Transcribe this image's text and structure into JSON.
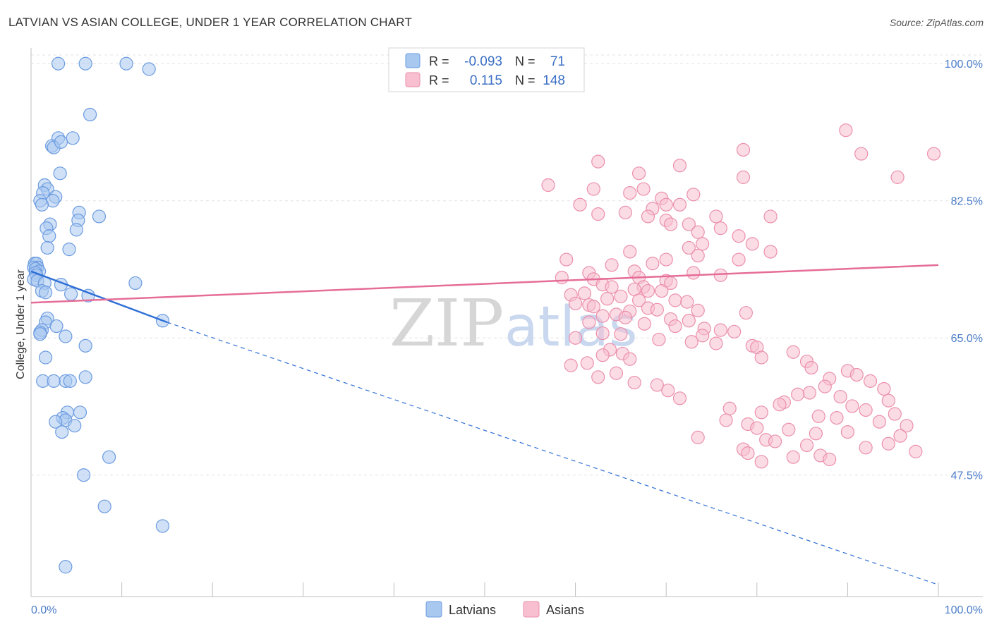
{
  "header": {
    "title": "LATVIAN VS ASIAN COLLEGE, UNDER 1 YEAR CORRELATION CHART",
    "source": "Source: ZipAtlas.com"
  },
  "watermark": {
    "zip": "ZIP",
    "atlas": "atlas"
  },
  "colors": {
    "latvians_fill": "#a9c8f0",
    "latvians_stroke": "#6b9be0",
    "latvians_line": "#2f6fd6",
    "asians_fill": "#f7bfd0",
    "asians_stroke": "#eb8fac",
    "asians_line": "#e56d98",
    "axis_label": "#4a7cc9",
    "grid": "#e3e3e3"
  },
  "legend": {
    "rows": [
      {
        "r_label": "R =",
        "r_value": "-0.093",
        "n_label": "N =",
        "n_value": "71"
      },
      {
        "r_label": "R =",
        "r_value": "0.115",
        "n_label": "N =",
        "n_value": "148"
      }
    ]
  },
  "bottom_legend": {
    "latvians": "Latvians",
    "asians": "Asians"
  },
  "chart_data": {
    "type": "scatter",
    "title": "LATVIAN VS ASIAN COLLEGE, UNDER 1 YEAR CORRELATION CHART",
    "xlabel": "",
    "ylabel": "College, Under 1 year",
    "xlim": [
      0,
      100
    ],
    "ylim": [
      32,
      102
    ],
    "x_tick_labels": [
      "0.0%",
      "100.0%"
    ],
    "y_tick_labels": [
      "100.0%",
      "82.5%",
      "65.0%",
      "47.5%"
    ],
    "y_ticks": [
      100,
      82.5,
      65,
      47.5
    ],
    "series": [
      {
        "name": "Latvians",
        "r": -0.093,
        "n": 71,
        "trend": {
          "x0": 0,
          "y0": 73.5,
          "x1": 15,
          "y1": 67,
          "dashed_to_x": 100,
          "dashed_to_y": 33.5
        },
        "points": [
          [
            3,
            100
          ],
          [
            6,
            100
          ],
          [
            10.5,
            100
          ],
          [
            13,
            99.3
          ],
          [
            6.5,
            93.5
          ],
          [
            3,
            90.5
          ],
          [
            4.6,
            90.5
          ],
          [
            2.3,
            89.5
          ],
          [
            2.5,
            89.3
          ],
          [
            3.3,
            90
          ],
          [
            3.2,
            86
          ],
          [
            1.5,
            84.5
          ],
          [
            1.8,
            84
          ],
          [
            1.3,
            83.5
          ],
          [
            1,
            82.5
          ],
          [
            2.7,
            83
          ],
          [
            2.4,
            82.5
          ],
          [
            5.3,
            81
          ],
          [
            7.5,
            80.5
          ],
          [
            1.2,
            82
          ],
          [
            5.2,
            80
          ],
          [
            2.1,
            79.5
          ],
          [
            1.7,
            79
          ],
          [
            5,
            78.8
          ],
          [
            2,
            78
          ],
          [
            1.8,
            76.5
          ],
          [
            4.2,
            76.3
          ],
          [
            0.4,
            74.5
          ],
          [
            0.6,
            74.5
          ],
          [
            0.7,
            74
          ],
          [
            0.3,
            74
          ],
          [
            0.5,
            73.8
          ],
          [
            0.9,
            73.5
          ],
          [
            0.5,
            73.3
          ],
          [
            0.6,
            73
          ],
          [
            0.3,
            72.5
          ],
          [
            0.7,
            72.3
          ],
          [
            1.5,
            72
          ],
          [
            3.3,
            71.8
          ],
          [
            11.5,
            72
          ],
          [
            1.2,
            71
          ],
          [
            1.6,
            70.8
          ],
          [
            4.4,
            70.6
          ],
          [
            6.3,
            70.4
          ],
          [
            1.8,
            67.5
          ],
          [
            1.6,
            67
          ],
          [
            2.8,
            66.5
          ],
          [
            1.2,
            66
          ],
          [
            1,
            65.7
          ],
          [
            3.8,
            65.2
          ],
          [
            14.5,
            67.2
          ],
          [
            6,
            64
          ],
          [
            1,
            65.5
          ],
          [
            1.6,
            62.5
          ],
          [
            6,
            60
          ],
          [
            3.8,
            59.5
          ],
          [
            4.3,
            59.5
          ],
          [
            1.3,
            59.5
          ],
          [
            2.5,
            59.5
          ],
          [
            4,
            55.5
          ],
          [
            5.4,
            55.5
          ],
          [
            3.5,
            54.8
          ],
          [
            3.8,
            54.5
          ],
          [
            2.7,
            54.3
          ],
          [
            4.8,
            53.8
          ],
          [
            3.4,
            53
          ],
          [
            8.6,
            49.8
          ],
          [
            5.8,
            47.5
          ],
          [
            8.1,
            43.5
          ],
          [
            14.5,
            41
          ],
          [
            3.8,
            35.8
          ]
        ]
      },
      {
        "name": "Asians",
        "r": 0.115,
        "n": 148,
        "trend": {
          "x0": 0,
          "y0": 69.5,
          "x1": 100,
          "y1": 74.3
        },
        "points": [
          [
            89.8,
            91.5
          ],
          [
            62.5,
            87.5
          ],
          [
            78.5,
            89
          ],
          [
            91.5,
            88.5
          ],
          [
            99.5,
            88.5
          ],
          [
            71.5,
            87
          ],
          [
            67,
            86
          ],
          [
            78.5,
            85.5
          ],
          [
            95.5,
            85.5
          ],
          [
            67.5,
            84
          ],
          [
            57,
            84.5
          ],
          [
            62,
            84
          ],
          [
            66,
            83.5
          ],
          [
            73,
            83.3
          ],
          [
            69.5,
            82.8
          ],
          [
            70,
            82
          ],
          [
            71.5,
            82
          ],
          [
            60.5,
            82
          ],
          [
            68.5,
            81.5
          ],
          [
            62.5,
            80.8
          ],
          [
            65.5,
            81
          ],
          [
            75.5,
            80.5
          ],
          [
            81.5,
            80.5
          ],
          [
            68,
            80.5
          ],
          [
            70,
            80
          ],
          [
            70.5,
            79.5
          ],
          [
            72.5,
            79.5
          ],
          [
            76,
            79
          ],
          [
            73.5,
            78.5
          ],
          [
            78,
            78
          ],
          [
            79.5,
            77
          ],
          [
            74,
            77
          ],
          [
            72.5,
            76.5
          ],
          [
            81.5,
            76
          ],
          [
            66,
            76
          ],
          [
            73.5,
            75.5
          ],
          [
            78,
            75
          ],
          [
            70,
            75
          ],
          [
            59,
            75
          ],
          [
            68.5,
            74.5
          ],
          [
            64,
            74.3
          ],
          [
            66.5,
            73.5
          ],
          [
            73,
            73.3
          ],
          [
            61.5,
            73.3
          ],
          [
            76,
            73
          ],
          [
            67,
            72.7
          ],
          [
            58.5,
            72.7
          ],
          [
            62,
            72.5
          ],
          [
            70,
            72.3
          ],
          [
            70.5,
            72
          ],
          [
            63,
            71.8
          ],
          [
            64,
            71.5
          ],
          [
            67.5,
            71.5
          ],
          [
            66.5,
            71.2
          ],
          [
            68,
            71
          ],
          [
            69.5,
            71
          ],
          [
            61,
            70.7
          ],
          [
            59.5,
            70.5
          ],
          [
            65,
            70.3
          ],
          [
            63.5,
            70
          ],
          [
            67,
            69.8
          ],
          [
            71,
            69.8
          ],
          [
            72.3,
            69.6
          ],
          [
            60,
            69.4
          ],
          [
            61.5,
            69.2
          ],
          [
            62,
            69
          ],
          [
            68,
            68.8
          ],
          [
            69,
            68.6
          ],
          [
            73.5,
            68.5
          ],
          [
            66,
            68.4
          ],
          [
            78.8,
            68.2
          ],
          [
            64.5,
            68
          ],
          [
            63,
            67.8
          ],
          [
            65.5,
            67.6
          ],
          [
            70.5,
            67.4
          ],
          [
            72.5,
            67.2
          ],
          [
            61.5,
            67
          ],
          [
            67.6,
            66.8
          ],
          [
            71,
            66.5
          ],
          [
            74.2,
            66.2
          ],
          [
            76,
            66
          ],
          [
            77.5,
            65.8
          ],
          [
            63,
            65.6
          ],
          [
            65,
            65.5
          ],
          [
            74,
            65.3
          ],
          [
            60,
            65
          ],
          [
            69.2,
            64.8
          ],
          [
            72.8,
            64.5
          ],
          [
            75.5,
            64.3
          ],
          [
            79.5,
            64
          ],
          [
            80,
            63.8
          ],
          [
            63.8,
            63.5
          ],
          [
            84,
            63.2
          ],
          [
            65.2,
            63
          ],
          [
            63,
            62.8
          ],
          [
            80.5,
            62.5
          ],
          [
            66,
            62.3
          ],
          [
            85.5,
            62
          ],
          [
            61.3,
            61.8
          ],
          [
            59.5,
            61.5
          ],
          [
            86,
            61.2
          ],
          [
            90,
            60.8
          ],
          [
            64.5,
            60.5
          ],
          [
            91,
            60.3
          ],
          [
            62.5,
            60
          ],
          [
            88,
            59.8
          ],
          [
            92.5,
            59.5
          ],
          [
            66.5,
            59.3
          ],
          [
            69,
            59
          ],
          [
            87.5,
            58.8
          ],
          [
            94,
            58.5
          ],
          [
            70.2,
            58.3
          ],
          [
            85.8,
            58
          ],
          [
            84.5,
            57.8
          ],
          [
            89.2,
            57.5
          ],
          [
            71.5,
            57.3
          ],
          [
            94.5,
            57
          ],
          [
            83,
            56.8
          ],
          [
            82.5,
            56.5
          ],
          [
            90.5,
            56.3
          ],
          [
            77,
            56
          ],
          [
            92,
            55.8
          ],
          [
            80.5,
            55.5
          ],
          [
            95.2,
            55.3
          ],
          [
            86.8,
            55
          ],
          [
            88.8,
            54.8
          ],
          [
            76.6,
            54.5
          ],
          [
            93.5,
            54.3
          ],
          [
            79,
            54
          ],
          [
            96.5,
            53.8
          ],
          [
            80,
            53.5
          ],
          [
            83.5,
            53.3
          ],
          [
            90,
            53
          ],
          [
            86.5,
            52.8
          ],
          [
            95.8,
            52.5
          ],
          [
            73.5,
            52.3
          ],
          [
            81,
            52
          ],
          [
            82,
            51.8
          ],
          [
            94.5,
            51.5
          ],
          [
            85.5,
            51.3
          ],
          [
            92,
            51
          ],
          [
            78.5,
            50.8
          ],
          [
            97.5,
            50.5
          ],
          [
            79,
            50.3
          ],
          [
            87,
            50
          ],
          [
            84,
            49.8
          ],
          [
            88,
            49.5
          ],
          [
            80.5,
            49.2
          ]
        ]
      }
    ]
  }
}
